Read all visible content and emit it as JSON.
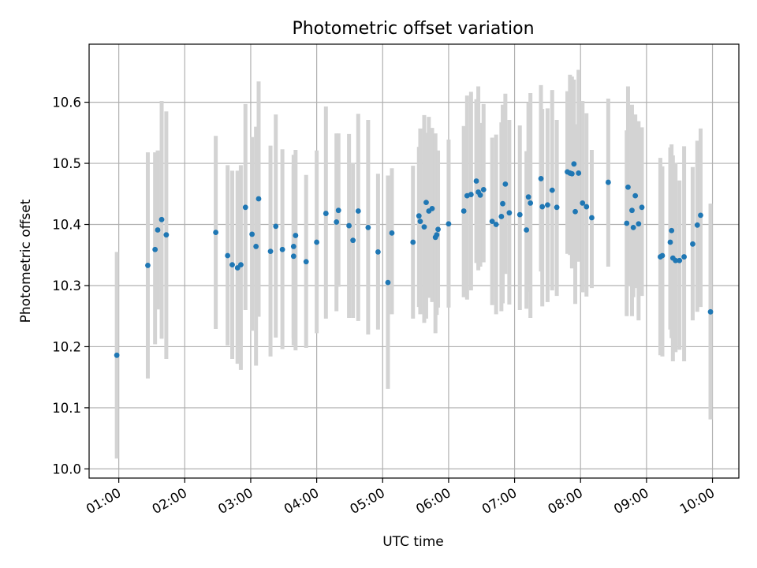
{
  "chart_data": {
    "type": "scatter",
    "title": "Photometric offset variation",
    "xlabel": "UTC time",
    "ylabel": "Photometric offset",
    "xlim_hours": [
      0.55,
      10.4
    ],
    "ylim": [
      9.985,
      10.695
    ],
    "grid": true,
    "colors": {
      "points": "#1f77b4",
      "errorbars": "#d3d3d3"
    },
    "x_ticks": [
      {
        "h": 1,
        "label": "01:00"
      },
      {
        "h": 2,
        "label": "02:00"
      },
      {
        "h": 3,
        "label": "03:00"
      },
      {
        "h": 4,
        "label": "04:00"
      },
      {
        "h": 5,
        "label": "05:00"
      },
      {
        "h": 6,
        "label": "06:00"
      },
      {
        "h": 7,
        "label": "07:00"
      },
      {
        "h": 8,
        "label": "08:00"
      },
      {
        "h": 9,
        "label": "09:00"
      },
      {
        "h": 10,
        "label": "10:00"
      }
    ],
    "y_ticks": [
      {
        "v": 10.0,
        "label": "10.0"
      },
      {
        "v": 10.1,
        "label": "10.1"
      },
      {
        "v": 10.2,
        "label": "10.2"
      },
      {
        "v": 10.3,
        "label": "10.3"
      },
      {
        "v": 10.4,
        "label": "10.4"
      },
      {
        "v": 10.5,
        "label": "10.5"
      },
      {
        "v": 10.6,
        "label": "10.6"
      }
    ],
    "points": [
      [
        0.97,
        10.186,
        10.017,
        10.355
      ],
      [
        1.44,
        10.333,
        10.148,
        10.518
      ],
      [
        1.55,
        10.359,
        10.204,
        10.518
      ],
      [
        1.59,
        10.391,
        10.261,
        10.521
      ],
      [
        1.65,
        10.408,
        10.213,
        10.602
      ],
      [
        1.72,
        10.383,
        10.18,
        10.585
      ],
      [
        2.47,
        10.387,
        10.229,
        10.545
      ],
      [
        2.65,
        10.349,
        10.202,
        10.497
      ],
      [
        2.72,
        10.334,
        10.18,
        10.488
      ],
      [
        2.8,
        10.329,
        10.172,
        10.488
      ],
      [
        2.85,
        10.334,
        10.162,
        10.497
      ],
      [
        2.92,
        10.428,
        10.26,
        10.597
      ],
      [
        3.02,
        10.384,
        10.226,
        10.543
      ],
      [
        3.08,
        10.364,
        10.169,
        10.56
      ],
      [
        3.12,
        10.442,
        10.249,
        10.634
      ],
      [
        3.3,
        10.356,
        10.184,
        10.529
      ],
      [
        3.38,
        10.397,
        10.215,
        10.58
      ],
      [
        3.48,
        10.359,
        10.196,
        10.523
      ],
      [
        3.65,
        10.348,
        10.202,
        10.495
      ],
      [
        3.65,
        10.364,
        10.214,
        10.514
      ],
      [
        3.68,
        10.382,
        10.194,
        10.522
      ],
      [
        3.84,
        10.339,
        10.198,
        10.481
      ],
      [
        4.0,
        10.371,
        10.222,
        10.521
      ],
      [
        4.14,
        10.418,
        10.246,
        10.593
      ],
      [
        4.3,
        10.404,
        10.258,
        10.549
      ],
      [
        4.33,
        10.423,
        10.298,
        10.549
      ],
      [
        4.49,
        10.398,
        10.247,
        10.548
      ],
      [
        4.55,
        10.374,
        10.247,
        10.501
      ],
      [
        4.63,
        10.422,
        10.242,
        10.581
      ],
      [
        4.78,
        10.395,
        10.22,
        10.571
      ],
      [
        4.93,
        10.355,
        10.228,
        10.483
      ],
      [
        5.08,
        10.305,
        10.131,
        10.48
      ],
      [
        5.14,
        10.386,
        10.253,
        10.492
      ],
      [
        5.46,
        10.371,
        10.246,
        10.496
      ],
      [
        5.55,
        10.414,
        10.265,
        10.527
      ],
      [
        5.57,
        10.405,
        10.253,
        10.557
      ],
      [
        5.63,
        10.396,
        10.239,
        10.579
      ],
      [
        5.66,
        10.436,
        10.246,
        10.55
      ],
      [
        5.7,
        10.422,
        10.28,
        10.576
      ],
      [
        5.75,
        10.426,
        10.273,
        10.558
      ],
      [
        5.8,
        10.379,
        10.222,
        10.549
      ],
      [
        5.82,
        10.383,
        10.252,
        10.513
      ],
      [
        5.84,
        10.392,
        10.264,
        10.521
      ],
      [
        6.0,
        10.401,
        10.264,
        10.539
      ],
      [
        6.23,
        10.422,
        10.281,
        10.561
      ],
      [
        6.28,
        10.447,
        10.277,
        10.611
      ],
      [
        6.34,
        10.449,
        10.292,
        10.617
      ],
      [
        6.42,
        10.471,
        10.337,
        10.605
      ],
      [
        6.45,
        10.453,
        10.325,
        10.626
      ],
      [
        6.48,
        10.448,
        10.331,
        10.566
      ],
      [
        6.53,
        10.457,
        10.338,
        10.597
      ],
      [
        6.66,
        10.405,
        10.268,
        10.542
      ],
      [
        6.72,
        10.4,
        10.253,
        10.547
      ],
      [
        6.8,
        10.413,
        10.258,
        10.567
      ],
      [
        6.82,
        10.434,
        10.271,
        10.596
      ],
      [
        6.86,
        10.466,
        10.319,
        10.614
      ],
      [
        6.92,
        10.419,
        10.269,
        10.571
      ],
      [
        7.08,
        10.416,
        10.26,
        10.562
      ],
      [
        7.18,
        10.391,
        10.262,
        10.52
      ],
      [
        7.21,
        10.445,
        10.29,
        10.6
      ],
      [
        7.24,
        10.435,
        10.247,
        10.615
      ],
      [
        7.4,
        10.475,
        10.323,
        10.628
      ],
      [
        7.42,
        10.429,
        10.266,
        10.589
      ],
      [
        7.5,
        10.432,
        10.273,
        10.59
      ],
      [
        7.57,
        10.456,
        10.292,
        10.62
      ],
      [
        7.64,
        10.428,
        10.283,
        10.571
      ],
      [
        7.8,
        10.486,
        10.352,
        10.618
      ],
      [
        7.84,
        10.484,
        10.35,
        10.645
      ],
      [
        7.87,
        10.483,
        10.328,
        10.642
      ],
      [
        7.9,
        10.499,
        10.379,
        10.637
      ],
      [
        7.92,
        10.421,
        10.27,
        10.564
      ],
      [
        7.97,
        10.484,
        10.339,
        10.653
      ],
      [
        8.03,
        10.435,
        10.289,
        10.602
      ],
      [
        8.09,
        10.429,
        10.282,
        10.582
      ],
      [
        8.17,
        10.411,
        10.296,
        10.522
      ],
      [
        8.42,
        10.469,
        10.331,
        10.606
      ],
      [
        8.7,
        10.402,
        10.25,
        10.554
      ],
      [
        8.72,
        10.461,
        10.299,
        10.626
      ],
      [
        8.78,
        10.423,
        10.25,
        10.596
      ],
      [
        8.8,
        10.395,
        10.281,
        10.545
      ],
      [
        8.83,
        10.447,
        10.296,
        10.58
      ],
      [
        8.88,
        10.401,
        10.243,
        10.569
      ],
      [
        8.93,
        10.428,
        10.283,
        10.559
      ],
      [
        9.21,
        10.347,
        10.186,
        10.509
      ],
      [
        9.24,
        10.349,
        10.184,
        10.495
      ],
      [
        9.36,
        10.371,
        10.228,
        10.526
      ],
      [
        9.38,
        10.39,
        10.214,
        10.531
      ],
      [
        9.4,
        10.345,
        10.176,
        10.513
      ],
      [
        9.44,
        10.341,
        10.191,
        10.501
      ],
      [
        9.5,
        10.341,
        10.195,
        10.472
      ],
      [
        9.57,
        10.347,
        10.176,
        10.528
      ],
      [
        9.7,
        10.368,
        10.243,
        10.494
      ],
      [
        9.77,
        10.399,
        10.257,
        10.537
      ],
      [
        9.82,
        10.415,
        10.265,
        10.557
      ],
      [
        9.97,
        10.257,
        10.081,
        10.434
      ]
    ]
  }
}
